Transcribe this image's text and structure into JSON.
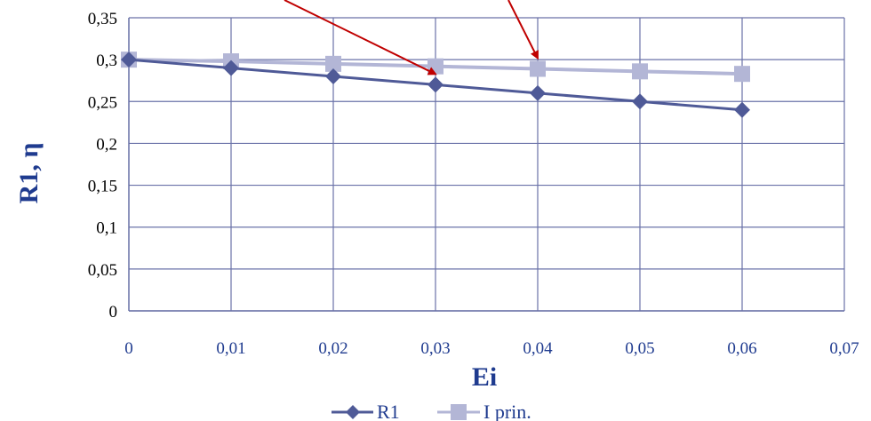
{
  "chart_data": {
    "type": "line",
    "x": [
      0,
      0.01,
      0.02,
      0.03,
      0.04,
      0.05,
      0.06
    ],
    "series": [
      {
        "name": "R1",
        "values": [
          0.3,
          0.29,
          0.28,
          0.27,
          0.26,
          0.25,
          0.24
        ],
        "color": "#4f5a97",
        "marker": "diamond"
      },
      {
        "name": "I prin.",
        "values": [
          0.3,
          0.298,
          0.295,
          0.292,
          0.289,
          0.286,
          0.283
        ],
        "color": "#b3b6d6",
        "marker": "square"
      }
    ],
    "xlabel": "Ei",
    "ylabel": "R1, η",
    "xlim": [
      0,
      0.07
    ],
    "ylim": [
      0,
      0.35
    ],
    "x_ticks": [
      "0",
      "0,01",
      "0,02",
      "0,03",
      "0,04",
      "0,05",
      "0,06",
      "0,07"
    ],
    "y_ticks": [
      "0",
      "0,05",
      "0,1",
      "0,15",
      "0,2",
      "0,25",
      "0,3",
      "0,35"
    ],
    "grid": true,
    "legend_position": "bottom",
    "annotations": [
      {
        "type": "arrow",
        "color": "#c00000",
        "target_x": 0.03,
        "target_y": 0.27
      },
      {
        "type": "arrow",
        "color": "#c00000",
        "target_x": 0.04,
        "target_y": 0.289
      }
    ],
    "colors": {
      "grid": "#6a72a8",
      "text": "#1f3b8f",
      "arrow": "#c00000"
    }
  }
}
